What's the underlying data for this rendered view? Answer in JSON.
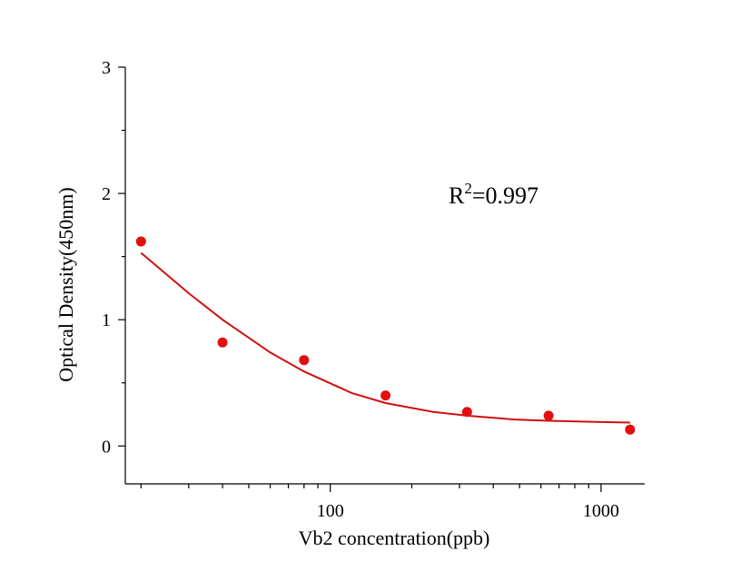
{
  "chart_data": {
    "type": "scatter",
    "title": "",
    "xlabel": "Vb2 concentration(ppb)",
    "ylabel": "Optical Density(450nm)",
    "x_scale": "log",
    "xlim": [
      17.5,
      1450
    ],
    "ylim": [
      -0.3,
      3
    ],
    "x_ticks": [
      100,
      1000
    ],
    "x_tick_labels": [
      "100",
      "1000"
    ],
    "y_ticks": [
      0,
      1,
      2,
      3
    ],
    "y_tick_labels": [
      "0",
      "1",
      "2",
      "3"
    ],
    "grid": false,
    "legend": "none",
    "series": [
      {
        "kind": "points",
        "color": "#e01010",
        "x": [
          20,
          40,
          80,
          160,
          320,
          640,
          1280
        ],
        "y": [
          1.62,
          0.82,
          0.68,
          0.4,
          0.27,
          0.24,
          0.13
        ]
      },
      {
        "kind": "fit-curve",
        "color": "#d01010",
        "x": [
          20,
          30,
          40,
          60,
          80,
          120,
          160,
          240,
          320,
          480,
          640,
          960,
          1280
        ],
        "y": [
          1.53,
          1.21,
          1.0,
          0.74,
          0.59,
          0.42,
          0.34,
          0.27,
          0.24,
          0.21,
          0.2,
          0.19,
          0.185
        ]
      }
    ],
    "annotation": {
      "prefix": "R",
      "superscript": "2",
      "suffix": "=0.997"
    }
  }
}
